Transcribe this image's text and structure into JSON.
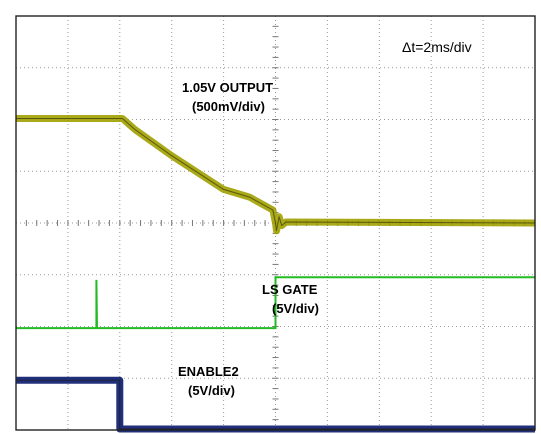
{
  "chart_data": {
    "type": "line",
    "title": "",
    "timebase": "Δt=2ms/div",
    "xlabel": "",
    "ylabel": "",
    "grid": true,
    "divisions": {
      "x": 10,
      "y": 8
    },
    "x_unit": "div",
    "y_unit": "div",
    "xlim": [
      0,
      10
    ],
    "ylim": [
      0,
      8
    ],
    "series": [
      {
        "name": "1.05V OUTPUT",
        "scale": "(500mV/div)",
        "color": "#a0a000",
        "style": "band",
        "points": [
          [
            0,
            6.02
          ],
          [
            2.05,
            6.02
          ],
          [
            2.3,
            5.8
          ],
          [
            3.0,
            5.3
          ],
          [
            4.0,
            4.65
          ],
          [
            4.5,
            4.5
          ],
          [
            4.95,
            4.25
          ],
          [
            5.0,
            4.0
          ],
          [
            5.02,
            3.85
          ],
          [
            5.07,
            4.12
          ],
          [
            5.12,
            3.95
          ],
          [
            5.2,
            4.02
          ],
          [
            10,
            4.0
          ]
        ]
      },
      {
        "name": "LS GATE",
        "scale": "(5V/div)",
        "color": "#22bb22",
        "style": "line",
        "points": [
          [
            0,
            1.97
          ],
          [
            1.55,
            1.97
          ],
          [
            1.55,
            2.9
          ],
          [
            1.56,
            1.97
          ],
          [
            5.0,
            1.97
          ],
          [
            5.0,
            2.95
          ],
          [
            10,
            2.95
          ]
        ]
      },
      {
        "name": "ENABLE2",
        "scale": "(5V/div)",
        "color": "#0a1a6e",
        "style": "band",
        "points": [
          [
            0,
            0.96
          ],
          [
            2.0,
            0.96
          ],
          [
            2.0,
            0.02
          ],
          [
            10,
            0.02
          ]
        ]
      }
    ]
  }
}
